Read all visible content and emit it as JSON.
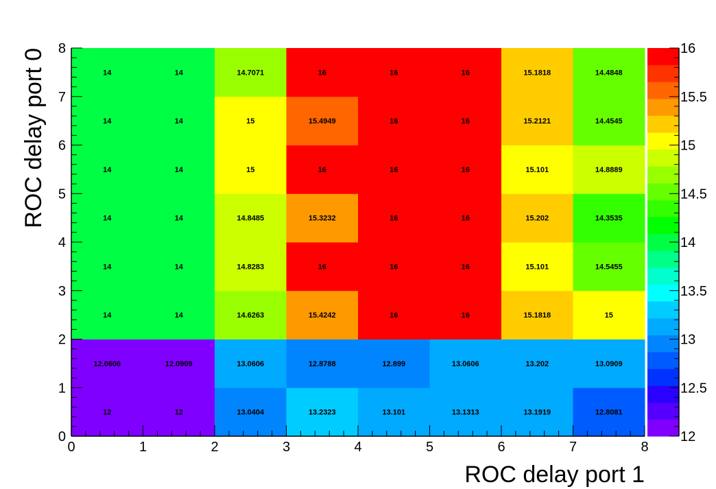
{
  "chart_data": {
    "type": "heatmap",
    "xlabel": "ROC delay port 1",
    "ylabel": "ROC delay port 0",
    "xlim": [
      0,
      8
    ],
    "ylim": [
      0,
      8
    ],
    "zlim": [
      12,
      16
    ],
    "x_ticks": [
      "0",
      "1",
      "2",
      "3",
      "4",
      "5",
      "6",
      "7",
      "8"
    ],
    "y_ticks": [
      "0",
      "1",
      "2",
      "3",
      "4",
      "5",
      "6",
      "7",
      "8"
    ],
    "z_ticks": [
      "12",
      "12.5",
      "13",
      "13.5",
      "14",
      "14.5",
      "15",
      "15.5",
      "16"
    ],
    "palette": [
      "#7f00ff",
      "#5500ff",
      "#2a00ff",
      "#0033ff",
      "#005cff",
      "#0085ff",
      "#00aaff",
      "#00ccff",
      "#00ffff",
      "#00ffcc",
      "#00ff88",
      "#00ff44",
      "#00ff00",
      "#33ff00",
      "#66ff00",
      "#99ff00",
      "#ccff00",
      "#ffff00",
      "#ffcc00",
      "#ff9900",
      "#ff6600",
      "#ff3300",
      "#ff0000"
    ],
    "rows": [
      {
        "y": 0,
        "values": [
          12,
          12,
          13.0404,
          13.2323,
          13.101,
          13.1313,
          13.1919,
          12.8081
        ],
        "labels": [
          "12",
          "12",
          "13.0404",
          "13.2323",
          "13.101",
          "13.1313",
          "13.1919",
          "12.8081"
        ]
      },
      {
        "y": 1,
        "values": [
          12.0606,
          12.0909,
          13.0606,
          12.8788,
          12.899,
          13.0606,
          13.202,
          13.0909
        ],
        "labels": [
          "12.0606",
          "12.0909",
          "13.0606",
          "12.8788",
          "12.899",
          "13.0606",
          "13.202",
          "13.0909"
        ]
      },
      {
        "y": 2,
        "values": [
          14,
          14,
          14.6263,
          15.4242,
          16,
          16,
          15.1818,
          15
        ],
        "labels": [
          "14",
          "14",
          "14.6263",
          "15.4242",
          "16",
          "16",
          "15.1818",
          "15"
        ]
      },
      {
        "y": 3,
        "values": [
          14,
          14,
          14.8283,
          16,
          16,
          16,
          15.101,
          14.5455
        ],
        "labels": [
          "14",
          "14",
          "14.8283",
          "16",
          "16",
          "16",
          "15.101",
          "14.5455"
        ]
      },
      {
        "y": 4,
        "values": [
          14,
          14,
          14.8485,
          15.3232,
          16,
          16,
          15.202,
          14.3535
        ],
        "labels": [
          "14",
          "14",
          "14.8485",
          "15.3232",
          "16",
          "16",
          "15.202",
          "14.3535"
        ]
      },
      {
        "y": 5,
        "values": [
          14,
          14,
          15,
          16,
          16,
          16,
          15.101,
          14.8889
        ],
        "labels": [
          "14",
          "14",
          "15",
          "16",
          "16",
          "16",
          "15.101",
          "14.8889"
        ]
      },
      {
        "y": 6,
        "values": [
          14,
          14,
          15,
          15.4949,
          16,
          16,
          15.2121,
          14.4545
        ],
        "labels": [
          "14",
          "14",
          "15",
          "15.4949",
          "16",
          "16",
          "15.2121",
          "14.4545"
        ]
      },
      {
        "y": 7,
        "values": [
          14,
          14,
          14.7071,
          16,
          16,
          16,
          15.1818,
          14.4848
        ],
        "labels": [
          "14",
          "14",
          "14.7071",
          "16",
          "16",
          "16",
          "15.1818",
          "14.4848"
        ]
      }
    ]
  }
}
